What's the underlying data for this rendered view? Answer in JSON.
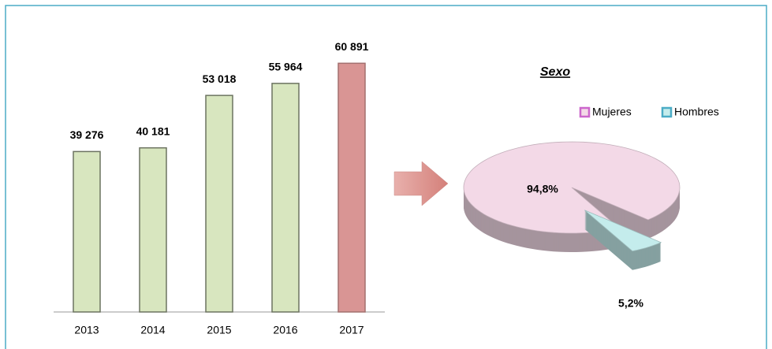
{
  "chart_data": [
    {
      "type": "bar",
      "categories": [
        "2013",
        "2014",
        "2015",
        "2016",
        "2017"
      ],
      "values": [
        39276,
        40181,
        53018,
        55964,
        60891
      ],
      "value_labels": [
        "39 276",
        "40 181",
        "53 018",
        "55 964",
        "60 891"
      ],
      "colors": [
        "#d8e6bf",
        "#d8e6bf",
        "#d8e6bf",
        "#d8e6bf",
        "#d99594"
      ],
      "ylim": [
        0,
        65000
      ]
    },
    {
      "type": "pie",
      "title": "Sexo",
      "categories": [
        "Mujeres",
        "Hombres"
      ],
      "values": [
        94.8,
        5.2
      ],
      "value_labels": [
        "94,8%",
        "5,2%"
      ],
      "colors": [
        "#f3d9e7",
        "#c4ecec"
      ],
      "legend": "top-right"
    }
  ]
}
